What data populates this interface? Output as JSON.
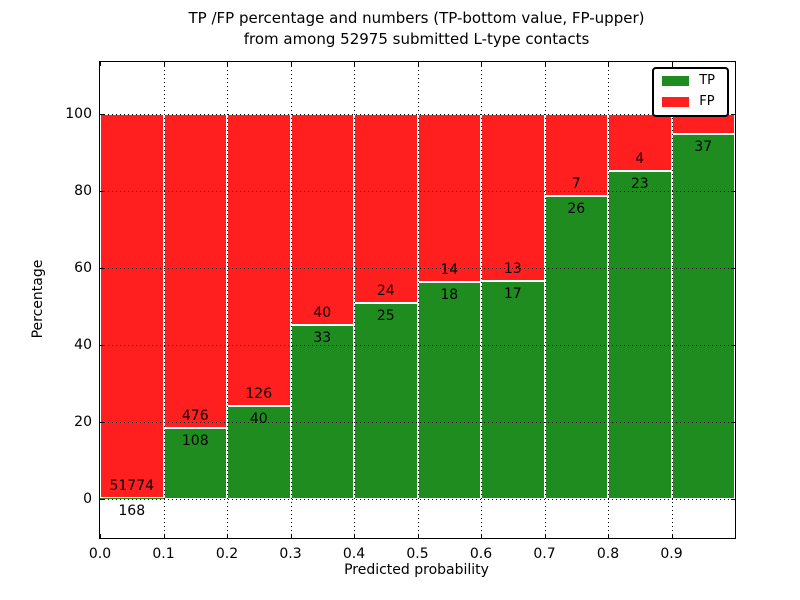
{
  "title": {
    "line1": "TP /FP percentage and numbers (TP-bottom value, FP-upper)",
    "line2": "from among 52975 submitted L-type contacts"
  },
  "chart_data": {
    "type": "bar",
    "stacked": true,
    "title": "TP /FP percentage and numbers (TP-bottom value, FP-upper) from among 52975 submitted L-type contacts",
    "xlabel": "Predicted probability",
    "ylabel": "Percentage",
    "total_contacts": 52975,
    "grid": true,
    "legend_position": "upper right",
    "xlim": [
      0.0,
      1.0
    ],
    "ylim": [
      0,
      100
    ],
    "x_tick_labels": [
      "0.0",
      "0.1",
      "0.2",
      "0.3",
      "0.4",
      "0.5",
      "0.6",
      "0.7",
      "0.8",
      "0.9"
    ],
    "y_tick_values": [
      0,
      20,
      40,
      60,
      80,
      100
    ],
    "bin_starts": [
      0.0,
      0.1,
      0.2,
      0.3,
      0.4,
      0.5,
      0.6,
      0.7,
      0.8,
      0.9
    ],
    "bin_width": 0.1,
    "colors": {
      "tp": "#1e8c1e",
      "fp": "#ff1f1f"
    },
    "legend": [
      {
        "label": "TP",
        "color": "#1e8c1e"
      },
      {
        "label": "FP",
        "color": "#ff1f1f"
      }
    ],
    "series": [
      {
        "name": "TP",
        "values": [
          168,
          108,
          40,
          33,
          25,
          18,
          17,
          26,
          23,
          37
        ]
      },
      {
        "name": "FP",
        "values": [
          51774,
          476,
          126,
          40,
          24,
          14,
          13,
          7,
          4,
          2
        ]
      }
    ],
    "tp_labels": [
      "168",
      "108",
      "40",
      "33",
      "25",
      "18",
      "17",
      "26",
      "23",
      "37"
    ],
    "fp_labels": [
      "51774",
      "476",
      "126",
      "40",
      "24",
      "14",
      "13",
      "7",
      "4",
      ""
    ]
  }
}
